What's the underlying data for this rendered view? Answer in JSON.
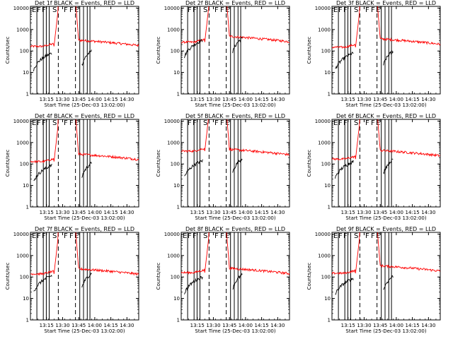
{
  "chart_data": {
    "type": "line",
    "layout": "3x3 grid",
    "title_suffix": "BLACK = Events, RED = LLD",
    "xlabel": "Start Time (25-Dec-03 13:02:00)",
    "ylabel": "Counts/sec",
    "x_tick_labels": [
      "13:15",
      "13:30",
      "13:45",
      "14:00",
      "14:15",
      "14:30"
    ],
    "x_tick_minutes": [
      13,
      28,
      43,
      58,
      73,
      88
    ],
    "xlim_minutes": [
      -2,
      99
    ],
    "y_tick_labels": [
      "1",
      "10",
      "100",
      "1000",
      "10000"
    ],
    "y_tick_values": [
      1,
      10,
      100,
      1000,
      10000
    ],
    "ylim": [
      1,
      12000
    ],
    "yscale": "log",
    "solid_lines_min": [
      4,
      10,
      12.8,
      15.5,
      44,
      47.5,
      51,
      53.5
    ],
    "dashed_lines_min": [
      24,
      40
    ],
    "panels": [
      {
        "title": "Det 1f",
        "events_level": 55,
        "lld_level": 165,
        "lld_end": 200,
        "markers": [
          {
            "text": "E",
            "x": 0
          },
          {
            "text": "F",
            "x": 7
          },
          {
            "text": "F",
            "x": 14
          },
          {
            "text": "S",
            "x": 29
          },
          {
            "text": "F",
            "x": 45
          },
          {
            "text": "F",
            "x": 53
          },
          {
            "text": "E",
            "x": 60
          }
        ]
      },
      {
        "title": "Det 2f",
        "events_level": 220,
        "lld_level": 260,
        "lld_end": 300,
        "markers": [
          {
            "text": "F",
            "x": 7
          },
          {
            "text": "F",
            "x": 14
          },
          {
            "text": "S",
            "x": 29
          },
          {
            "text": "F",
            "x": 45
          },
          {
            "text": "F",
            "x": 53
          },
          {
            "text": "E",
            "x": 60
          }
        ]
      },
      {
        "title": "Det 3f",
        "events_level": 55,
        "lld_level": 150,
        "lld_end": 230,
        "markers": [
          {
            "text": "E",
            "x": 0
          },
          {
            "text": "F",
            "x": 7
          },
          {
            "text": "F",
            "x": 14
          },
          {
            "text": "S",
            "x": 29
          },
          {
            "text": "F",
            "x": 45
          },
          {
            "text": "F",
            "x": 53
          },
          {
            "text": "E",
            "x": 60
          }
        ]
      },
      {
        "title": "Det 4f",
        "events_level": 60,
        "lld_level": 130,
        "lld_end": 180,
        "markers": [
          {
            "text": "E",
            "x": 0
          },
          {
            "text": "F",
            "x": 7
          },
          {
            "text": "F",
            "x": 14
          },
          {
            "text": "S",
            "x": 29
          },
          {
            "text": "F",
            "x": 45
          },
          {
            "text": "F",
            "x": 53
          },
          {
            "text": "E",
            "x": 60
          }
        ]
      },
      {
        "title": "Det 5f",
        "events_level": 100,
        "lld_level": 400,
        "lld_end": 300,
        "markers": [
          {
            "text": "F",
            "x": 7
          },
          {
            "text": "F",
            "x": 14
          },
          {
            "text": "S",
            "x": 29
          },
          {
            "text": "F",
            "x": 45
          },
          {
            "text": "F",
            "x": 53
          },
          {
            "text": "E",
            "x": 60
          }
        ]
      },
      {
        "title": "Det 6f",
        "events_level": 90,
        "lld_level": 170,
        "lld_end": 270,
        "markers": [
          {
            "text": "E",
            "x": 0
          },
          {
            "text": "F",
            "x": 7
          },
          {
            "text": "F",
            "x": 14
          },
          {
            "text": "S",
            "x": 29
          },
          {
            "text": "F",
            "x": 45
          },
          {
            "text": "F",
            "x": 53
          },
          {
            "text": "E",
            "x": 60
          }
        ]
      },
      {
        "title": "Det 7f",
        "events_level": 80,
        "lld_level": 140,
        "lld_end": 150,
        "markers": [
          {
            "text": "E",
            "x": 0
          },
          {
            "text": "F",
            "x": 7
          },
          {
            "text": "F",
            "x": 14
          },
          {
            "text": "S",
            "x": 29
          },
          {
            "text": "F",
            "x": 45
          },
          {
            "text": "F",
            "x": 53
          },
          {
            "text": "E",
            "x": 60
          }
        ]
      },
      {
        "title": "Det 8f",
        "events_level": 70,
        "lld_level": 160,
        "lld_end": 160,
        "markers": [
          {
            "text": "E",
            "x": 0
          },
          {
            "text": "F",
            "x": 7
          },
          {
            "text": "F",
            "x": 14
          },
          {
            "text": "S",
            "x": 29
          },
          {
            "text": "F",
            "x": 45
          },
          {
            "text": "F",
            "x": 53
          },
          {
            "text": "E",
            "x": 60
          }
        ]
      },
      {
        "title": "Det 9f",
        "events_level": 60,
        "lld_level": 150,
        "lld_end": 210,
        "markers": [
          {
            "text": "E",
            "x": 0
          },
          {
            "text": "F",
            "x": 7
          },
          {
            "text": "F",
            "x": 14
          },
          {
            "text": "S",
            "x": 29
          },
          {
            "text": "F",
            "x": 45
          },
          {
            "text": "F",
            "x": 53
          },
          {
            "text": "E",
            "x": 60
          }
        ]
      }
    ],
    "colors": {
      "events": "#000000",
      "lld": "#ff0000",
      "axis": "#000000"
    }
  }
}
